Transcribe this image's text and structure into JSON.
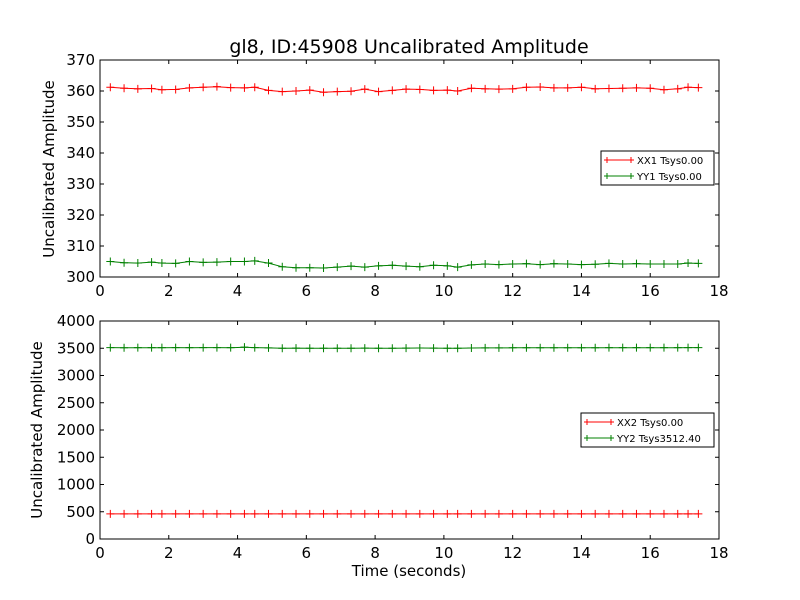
{
  "chart_data": [
    {
      "type": "line",
      "title": "gl8, ID:45908 Uncalibrated Amplitude",
      "xlabel": "",
      "ylabel": "Uncalibrated Amplitude",
      "xlim": [
        0,
        18
      ],
      "ylim": [
        300,
        370
      ],
      "xticks": [
        "0",
        "2",
        "4",
        "6",
        "8",
        "10",
        "12",
        "14",
        "16",
        "18"
      ],
      "yticks": [
        "300",
        "310",
        "320",
        "330",
        "340",
        "350",
        "360",
        "370"
      ],
      "grid": false,
      "legend_position": "center-right",
      "x": [
        0.3,
        0.7,
        1.1,
        1.5,
        1.8,
        2.2,
        2.6,
        3.0,
        3.4,
        3.8,
        4.2,
        4.5,
        4.9,
        5.3,
        5.7,
        6.1,
        6.5,
        6.9,
        7.3,
        7.7,
        8.1,
        8.5,
        8.9,
        9.3,
        9.7,
        10.1,
        10.4,
        10.8,
        11.2,
        11.6,
        12.0,
        12.4,
        12.8,
        13.2,
        13.6,
        14.0,
        14.4,
        14.8,
        15.2,
        15.6,
        16.0,
        16.4,
        16.8,
        17.1,
        17.4
      ],
      "series": [
        {
          "name": "XX1 Tsys0.00",
          "color": "#ff0000",
          "values": [
            361.2,
            360.9,
            360.7,
            360.8,
            360.4,
            360.5,
            361.0,
            361.2,
            361.4,
            361.1,
            361.0,
            361.2,
            360.2,
            359.8,
            360.0,
            360.3,
            359.6,
            359.8,
            359.9,
            360.6,
            359.8,
            360.2,
            360.6,
            360.5,
            360.2,
            360.3,
            360.0,
            360.9,
            360.7,
            360.6,
            360.7,
            361.2,
            361.3,
            361.0,
            361.0,
            361.2,
            360.7,
            360.8,
            360.9,
            361.0,
            360.9,
            360.4,
            360.7,
            361.2,
            361.1
          ]
        },
        {
          "name": "YY1 Tsys0.00",
          "color": "#008000",
          "values": [
            305.0,
            304.6,
            304.5,
            304.8,
            304.5,
            304.4,
            305.0,
            304.7,
            304.8,
            305.0,
            305.0,
            305.2,
            304.5,
            303.3,
            303.0,
            303.0,
            302.9,
            303.2,
            303.5,
            303.2,
            303.6,
            303.8,
            303.5,
            303.3,
            303.8,
            303.6,
            303.2,
            303.9,
            304.2,
            304.0,
            304.2,
            304.3,
            304.0,
            304.3,
            304.2,
            304.0,
            304.1,
            304.4,
            304.2,
            304.3,
            304.2,
            304.2,
            304.2,
            304.5,
            304.4
          ]
        }
      ]
    },
    {
      "type": "line",
      "title": "",
      "xlabel": "Time (seconds)",
      "ylabel": "Uncalibrated Amplitude",
      "xlim": [
        0,
        18
      ],
      "ylim": [
        0,
        4000
      ],
      "xticks": [
        "0",
        "2",
        "4",
        "6",
        "8",
        "10",
        "12",
        "14",
        "16",
        "18"
      ],
      "yticks": [
        "0",
        "500",
        "1000",
        "1500",
        "2000",
        "2500",
        "3000",
        "3500",
        "4000"
      ],
      "grid": false,
      "legend_position": "center-right",
      "x": [
        0.3,
        0.7,
        1.1,
        1.5,
        1.8,
        2.2,
        2.6,
        3.0,
        3.4,
        3.8,
        4.2,
        4.5,
        4.9,
        5.3,
        5.7,
        6.1,
        6.5,
        6.9,
        7.3,
        7.7,
        8.1,
        8.5,
        8.9,
        9.3,
        9.7,
        10.1,
        10.4,
        10.8,
        11.2,
        11.6,
        12.0,
        12.4,
        12.8,
        13.2,
        13.6,
        14.0,
        14.4,
        14.8,
        15.2,
        15.6,
        16.0,
        16.4,
        16.8,
        17.1,
        17.4
      ],
      "series": [
        {
          "name": "XX2 Tsys0.00",
          "color": "#ff0000",
          "values": [
            461,
            461,
            461,
            461,
            461,
            461,
            461,
            461,
            461,
            461,
            461,
            461,
            461,
            461,
            461,
            461,
            461,
            461,
            461,
            461,
            461,
            461,
            461,
            461,
            461,
            461,
            461,
            461,
            461,
            461,
            461,
            461,
            461,
            461,
            461,
            461,
            461,
            461,
            461,
            461,
            461,
            461,
            461,
            461,
            461
          ]
        },
        {
          "name": "YY2 Tsys3512.40",
          "color": "#008000",
          "values": [
            3512,
            3510,
            3511,
            3511,
            3511,
            3512,
            3511,
            3512,
            3512,
            3511,
            3520,
            3512,
            3506,
            3500,
            3502,
            3500,
            3500,
            3499,
            3501,
            3503,
            3501,
            3500,
            3503,
            3504,
            3502,
            3500,
            3499,
            3504,
            3507,
            3507,
            3509,
            3509,
            3509,
            3510,
            3510,
            3510,
            3510,
            3511,
            3511,
            3511,
            3511,
            3511,
            3511,
            3512,
            3512
          ]
        }
      ]
    }
  ]
}
